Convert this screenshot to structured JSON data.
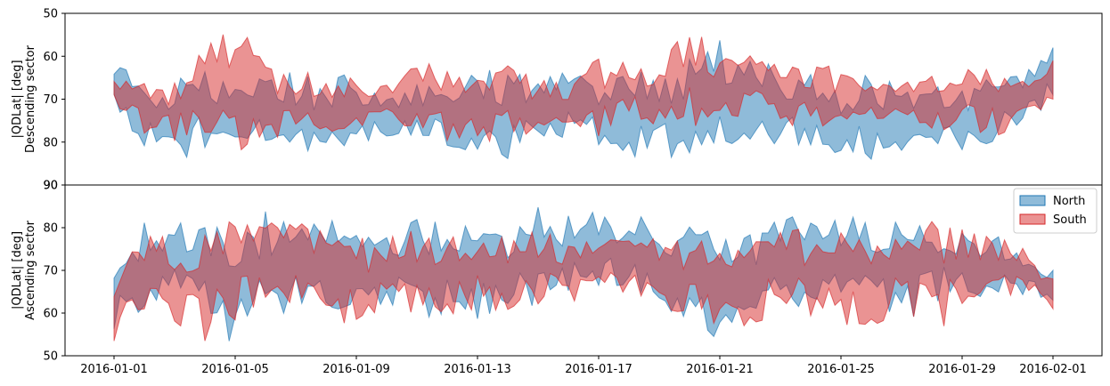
{
  "chart_data": [
    {
      "type": "area",
      "title": "",
      "xlabel": "",
      "ylabel": "|QDLat| [deg]",
      "ylabel2": "Descending sector",
      "ylim": [
        90,
        50
      ],
      "y_inverted": true,
      "yticks": [
        "50",
        "60",
        "70",
        "80",
        "90"
      ],
      "xlim": [
        "2016-01-01",
        "2016-02-01"
      ],
      "legend": null,
      "grid": false,
      "series": [
        {
          "name": "North",
          "color": "#1f77b4",
          "alpha": 0.5,
          "band": {
            "x": [
              "2016-01-01",
              "2016-01-02",
              "2016-01-03",
              "2016-01-04",
              "2016-01-05",
              "2016-01-06",
              "2016-01-07",
              "2016-01-08",
              "2016-01-09",
              "2016-01-10",
              "2016-01-11",
              "2016-01-12",
              "2016-01-13",
              "2016-01-14",
              "2016-01-15",
              "2016-01-16",
              "2016-01-17",
              "2016-01-18",
              "2016-01-19",
              "2016-01-20",
              "2016-01-21",
              "2016-01-22",
              "2016-01-23",
              "2016-01-24",
              "2016-01-25",
              "2016-01-26",
              "2016-01-27",
              "2016-01-28",
              "2016-01-29",
              "2016-01-30",
              "2016-01-31",
              "2016-02-01"
            ],
            "y_low": [
              60,
              65,
              63,
              62,
              67,
              64,
              63,
              66,
              63,
              70,
              66,
              64,
              63,
              63,
              64,
              63,
              65,
              63,
              64,
              59,
              56,
              58,
              62,
              64,
              67,
              63,
              66,
              67,
              67,
              64,
              63,
              58
            ],
            "y_high": [
              75,
              83,
              86,
              82,
              80,
              81,
              83,
              85,
              83,
              80,
              80,
              82,
              84,
              84,
              82,
              80,
              81,
              84,
              83,
              87,
              83,
              80,
              82,
              82,
              84,
              85,
              82,
              84,
              82,
              80,
              78,
              69
            ]
          }
        },
        {
          "name": "South",
          "color": "#d62728",
          "alpha": 0.5,
          "band": {
            "x": [
              "2016-01-01",
              "2016-01-02",
              "2016-01-03",
              "2016-01-04",
              "2016-01-05",
              "2016-01-06",
              "2016-01-07",
              "2016-01-08",
              "2016-01-09",
              "2016-01-10",
              "2016-01-11",
              "2016-01-12",
              "2016-01-13",
              "2016-01-14",
              "2016-01-15",
              "2016-01-16",
              "2016-01-17",
              "2016-01-18",
              "2016-01-19",
              "2016-01-20",
              "2016-01-21",
              "2016-01-22",
              "2016-01-23",
              "2016-01-24",
              "2016-01-25",
              "2016-01-26",
              "2016-01-27",
              "2016-01-28",
              "2016-01-29",
              "2016-01-30",
              "2016-01-31",
              "2016-02-01"
            ],
            "y_low": [
              63,
              64,
              66,
              58,
              51,
              62,
              63,
              64,
              65,
              66,
              62,
              61,
              64,
              62,
              65,
              66,
              59,
              61,
              62,
              52,
              60,
              59,
              62,
              61,
              63,
              66,
              65,
              64,
              63,
              60,
              64,
              61
            ],
            "y_high": [
              73,
              78,
              80,
              78,
              84,
              79,
              80,
              78,
              78,
              75,
              78,
              81,
              82,
              79,
              78,
              76,
              79,
              75,
              77,
              76,
              79,
              72,
              75,
              78,
              76,
              75,
              74,
              78,
              77,
              79,
              77,
              70
            ]
          }
        }
      ]
    },
    {
      "type": "area",
      "title": "",
      "xlabel": "",
      "ylabel": "|QDLat| [deg]",
      "ylabel2": "Ascending sector",
      "ylim": [
        50,
        90
      ],
      "yticks": [
        "50",
        "60",
        "70",
        "80",
        "90"
      ],
      "xlim": [
        "2016-01-01",
        "2016-02-01"
      ],
      "xticks": [
        "2016-01-01",
        "2016-01-05",
        "2016-01-09",
        "2016-01-13",
        "2016-01-17",
        "2016-01-21",
        "2016-01-25",
        "2016-01-29",
        "2016-02-01"
      ],
      "legend": "top-right",
      "grid": false,
      "series": [
        {
          "name": "North",
          "color": "#1f77b4",
          "alpha": 0.5,
          "band": {
            "x": [
              "2016-01-01",
              "2016-01-02",
              "2016-01-03",
              "2016-01-04",
              "2016-01-05",
              "2016-01-06",
              "2016-01-07",
              "2016-01-08",
              "2016-01-09",
              "2016-01-10",
              "2016-01-11",
              "2016-01-12",
              "2016-01-13",
              "2016-01-14",
              "2016-01-15",
              "2016-01-16",
              "2016-01-17",
              "2016-01-18",
              "2016-01-19",
              "2016-01-20",
              "2016-01-21",
              "2016-01-22",
              "2016-01-23",
              "2016-01-24",
              "2016-01-25",
              "2016-01-26",
              "2016-01-27",
              "2016-01-28",
              "2016-01-29",
              "2016-01-30",
              "2016-01-31",
              "2016-02-01"
            ],
            "y_low": [
              56,
              60,
              62,
              60,
              51,
              58,
              60,
              61,
              57,
              60,
              58,
              60,
              58,
              60,
              61,
              64,
              65,
              66,
              63,
              55,
              54,
              57,
              60,
              62,
              62,
              64,
              56,
              62,
              64,
              63,
              64,
              63
            ],
            "y_high": [
              73,
              82,
              83,
              82,
              82,
              84,
              80,
              83,
              85,
              81,
              83,
              81,
              82,
              82,
              85,
              84,
              84,
              83,
              83,
              81,
              80,
              80,
              84,
              83,
              86,
              82,
              83,
              82,
              81,
              80,
              75,
              70
            ]
          }
        },
        {
          "name": "South",
          "color": "#d62728",
          "alpha": 0.5,
          "band": {
            "x": [
              "2016-01-01",
              "2016-01-02",
              "2016-01-03",
              "2016-01-04",
              "2016-01-05",
              "2016-01-06",
              "2016-01-07",
              "2016-01-08",
              "2016-01-09",
              "2016-01-10",
              "2016-01-11",
              "2016-01-12",
              "2016-01-13",
              "2016-01-14",
              "2016-01-15",
              "2016-01-16",
              "2016-01-17",
              "2016-01-18",
              "2016-01-19",
              "2016-01-20",
              "2016-01-21",
              "2016-01-22",
              "2016-01-23",
              "2016-01-24",
              "2016-01-25",
              "2016-01-26",
              "2016-01-27",
              "2016-01-28",
              "2016-01-29",
              "2016-01-30",
              "2016-01-31",
              "2016-02-01"
            ],
            "y_low": [
              53,
              60,
              57,
              53,
              58,
              60,
              62,
              61,
              54,
              60,
              60,
              58,
              61,
              60,
              62,
              62,
              66,
              64,
              60,
              58,
              55,
              56,
              60,
              59,
              57,
              55,
              62,
              54,
              61,
              63,
              64,
              61
            ],
            "y_high": [
              68,
              79,
              78,
              80,
              84,
              82,
              82,
              79,
              80,
              78,
              80,
              79,
              80,
              78,
              80,
              78,
              79,
              80,
              78,
              79,
              82,
              81,
              82,
              79,
              80,
              78,
              80,
              83,
              80,
              78,
              76,
              68
            ]
          }
        }
      ]
    }
  ]
}
